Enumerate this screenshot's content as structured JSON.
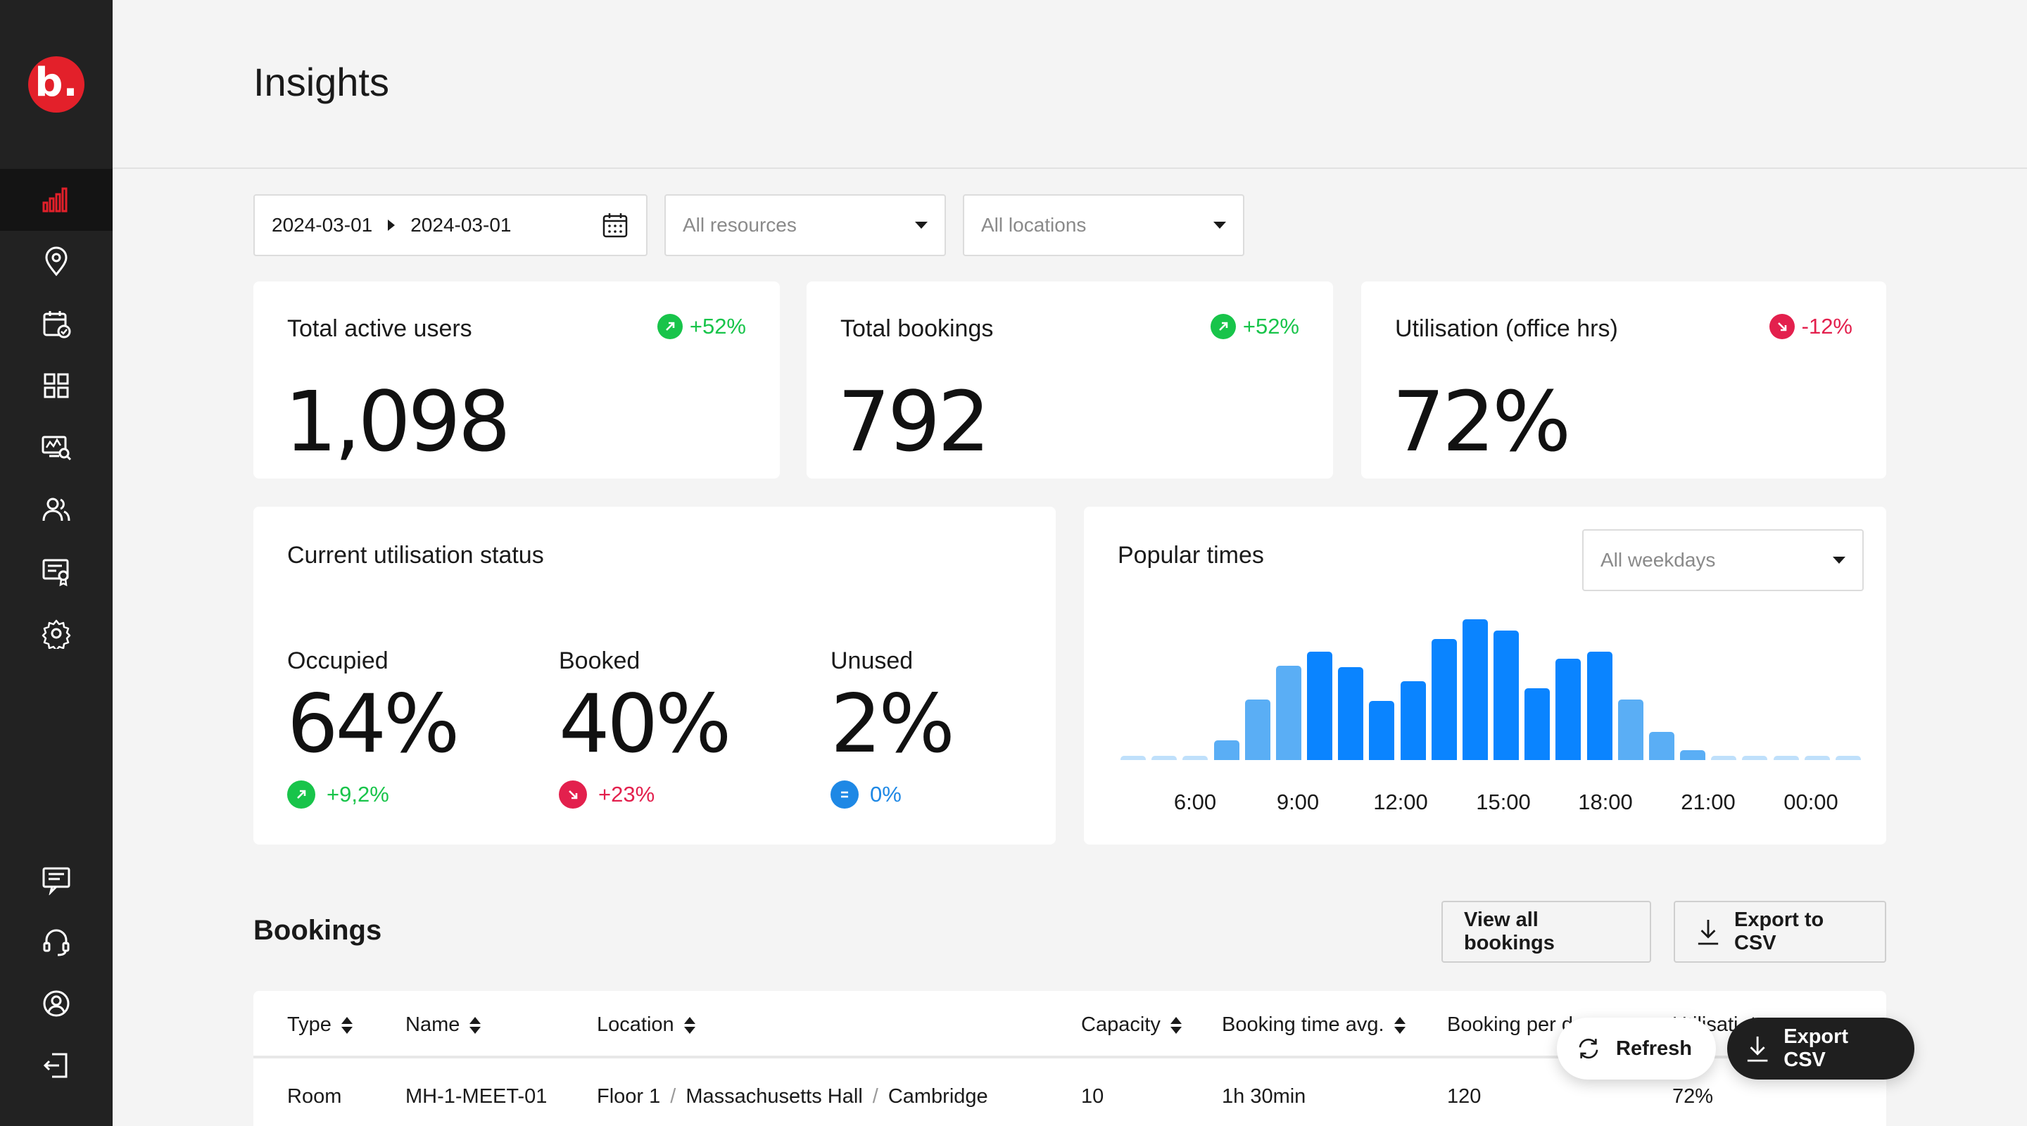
{
  "app": {
    "logo_text": "b."
  },
  "page": {
    "title": "Insights"
  },
  "filters": {
    "date_start": "2024-03-01",
    "date_end": "2024-03-01",
    "resources_placeholder": "All resources",
    "locations_placeholder": "All locations"
  },
  "stats": [
    {
      "label": "Total active users",
      "value": "1,098",
      "trend": "+52%",
      "direction": "up"
    },
    {
      "label": "Total bookings",
      "value": "792",
      "trend": "+52%",
      "direction": "up"
    },
    {
      "label": "Utilisation (office hrs)",
      "value": "72%",
      "trend": "-12%",
      "direction": "down"
    }
  ],
  "utilisation": {
    "title": "Current utilisation status",
    "items": [
      {
        "label": "Occupied",
        "value": "64%",
        "delta": "+9,2%",
        "direction": "up"
      },
      {
        "label": "Booked",
        "value": "40%",
        "delta": "+23%",
        "direction": "down"
      },
      {
        "label": "Unused",
        "value": "2%",
        "delta": "0%",
        "direction": "neutral"
      }
    ]
  },
  "popular_times": {
    "title": "Popular times",
    "weekday_placeholder": "All weekdays"
  },
  "chart_data": {
    "type": "bar",
    "categories": [
      "1",
      "2",
      "3",
      "4",
      "5",
      "6",
      "7",
      "8",
      "9",
      "10",
      "11",
      "12",
      "13",
      "14",
      "15",
      "16",
      "17",
      "18",
      "19",
      "20",
      "21",
      "22",
      "23",
      "24"
    ],
    "values": [
      2,
      2,
      2,
      14,
      43,
      67,
      77,
      66,
      42,
      56,
      86,
      100,
      92,
      51,
      72,
      77,
      43,
      20,
      7,
      2,
      2,
      2,
      2,
      2
    ],
    "highlight_indices": [
      6,
      7,
      8,
      9,
      10,
      11,
      12,
      13,
      14,
      15
    ],
    "tick_labels": [
      "6:00",
      "9:00",
      "12:00",
      "15:00",
      "18:00",
      "21:00",
      "00:00"
    ],
    "colors": {
      "low": "#bfe0fb",
      "mid": "#5aaef5",
      "high": "#0a84ff"
    },
    "title": "",
    "xlabel": "",
    "ylabel": ""
  },
  "bookings": {
    "title": "Bookings",
    "view_all_label": "View all bookings",
    "export_label": "Export to CSV",
    "columns": [
      "Type",
      "Name",
      "Location",
      "Capacity",
      "Booking time avg.",
      "Booking per d",
      "Utilisati"
    ],
    "rows": [
      {
        "type": "Room",
        "name": "MH-1-MEET-01",
        "location": [
          "Floor 1",
          "Massachusetts Hall",
          "Cambridge"
        ],
        "location_separator": "/",
        "capacity": "10",
        "booking_time_avg": "1h 30min",
        "booking_per_day": "120",
        "utilisation": "72%"
      }
    ]
  },
  "floating": {
    "refresh_label": "Refresh",
    "export_label": "Export CSV"
  },
  "colors": {
    "brand": "#e3202a",
    "up": "#18c44a",
    "down": "#e3204d",
    "neutral": "#1e88e5",
    "sidebar": "#222222"
  }
}
